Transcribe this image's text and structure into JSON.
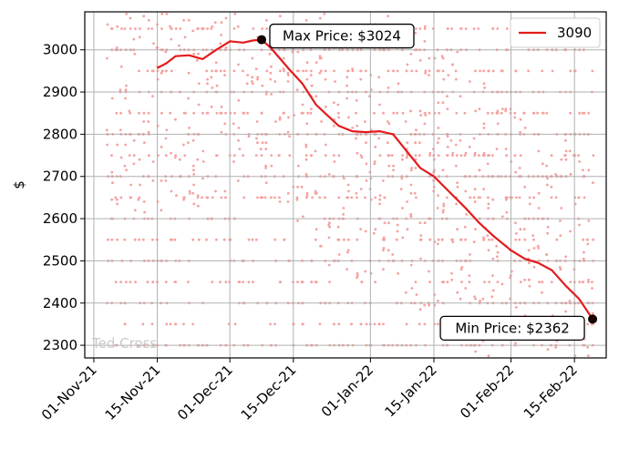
{
  "chart_data": {
    "type": "line",
    "title": "",
    "xlabel": "",
    "ylabel": "$",
    "x_ticks": [
      "01-Nov-21",
      "15-Nov-21",
      "01-Dec-21",
      "15-Dec-21",
      "01-Jan-22",
      "15-Jan-22",
      "01-Feb-22",
      "15-Feb-22"
    ],
    "y_ticks": [
      2300,
      2400,
      2500,
      2600,
      2700,
      2800,
      2900,
      3000
    ],
    "xlim": [
      "2021-10-30",
      "2022-02-22"
    ],
    "ylim": [
      2270,
      3090
    ],
    "grid": true,
    "legend": {
      "location": "top-right",
      "entries": [
        "3090"
      ]
    },
    "series": [
      {
        "name": "3090",
        "color": "#e41a1c",
        "x": [
          "2021-11-15",
          "2021-11-17",
          "2021-11-19",
          "2021-11-22",
          "2021-11-25",
          "2021-11-28",
          "2021-12-01",
          "2021-12-04",
          "2021-12-06",
          "2021-12-08",
          "2021-12-10",
          "2021-12-12",
          "2021-12-14",
          "2021-12-17",
          "2021-12-20",
          "2021-12-23",
          "2021-12-25",
          "2021-12-28",
          "2021-12-31",
          "2022-01-03",
          "2022-01-06",
          "2022-01-09",
          "2022-01-12",
          "2022-01-15",
          "2022-01-18",
          "2022-01-22",
          "2022-01-25",
          "2022-01-28",
          "2022-02-01",
          "2022-02-04",
          "2022-02-07",
          "2022-02-10",
          "2022-02-13",
          "2022-02-16",
          "2022-02-19"
        ],
        "y": [
          2957,
          2968,
          2985,
          2987,
          2978,
          3000,
          3020,
          3017,
          3022,
          3024,
          3005,
          2980,
          2955,
          2920,
          2870,
          2840,
          2820,
          2807,
          2805,
          2807,
          2800,
          2760,
          2720,
          2700,
          2668,
          2625,
          2590,
          2560,
          2525,
          2505,
          2495,
          2478,
          2442,
          2410,
          2362
        ]
      }
    ],
    "scatter_points": {
      "color": "#f4a3a0",
      "description": "individual listing prices"
    },
    "annotations": [
      {
        "text": "Max Price: $3024",
        "x": "2021-12-08",
        "y": 3024
      },
      {
        "text": "Min Price: $2362",
        "x": "2022-02-19",
        "y": 2362
      }
    ],
    "watermark": "Ted Cross"
  }
}
